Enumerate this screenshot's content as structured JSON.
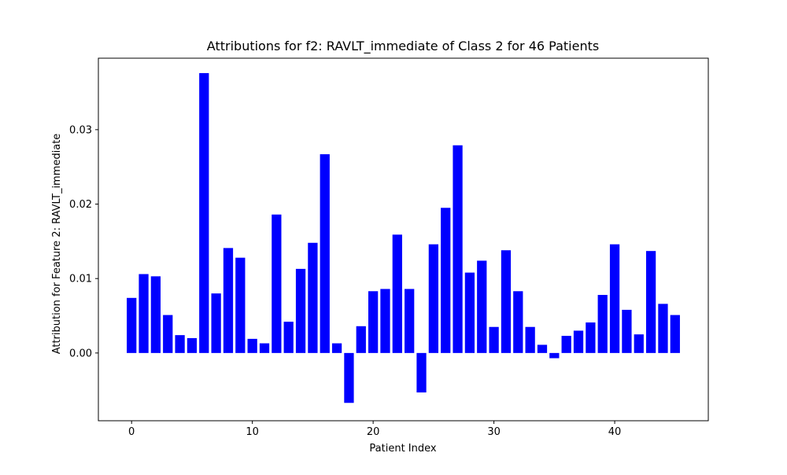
{
  "chart_data": {
    "type": "bar",
    "title": "Attributions for f2: RAVLT_immediate of Class 2 for 46 Patients",
    "xlabel": "Patient Index",
    "ylabel": "Attribution for Feature 2: RAVLT_immediate",
    "x": [
      0,
      1,
      2,
      3,
      4,
      5,
      6,
      7,
      8,
      9,
      10,
      11,
      12,
      13,
      14,
      15,
      16,
      17,
      18,
      19,
      20,
      21,
      22,
      23,
      24,
      25,
      26,
      27,
      28,
      29,
      30,
      31,
      32,
      33,
      34,
      35,
      36,
      37,
      38,
      39,
      40,
      41,
      42,
      43,
      44,
      45
    ],
    "values": [
      0.0074,
      0.0106,
      0.0103,
      0.0051,
      0.0024,
      0.002,
      0.0376,
      0.008,
      0.0141,
      0.0128,
      0.0019,
      0.0013,
      0.0186,
      0.0042,
      0.0113,
      0.0148,
      0.0267,
      0.0013,
      -0.0067,
      0.0036,
      0.0083,
      0.0086,
      0.0159,
      0.0086,
      -0.0053,
      0.0146,
      0.0195,
      0.0279,
      0.0108,
      0.0124,
      0.0035,
      0.0138,
      0.0083,
      0.0035,
      0.0011,
      -0.0007,
      0.0023,
      0.003,
      0.0041,
      0.0078,
      0.0146,
      0.0058,
      0.0025,
      0.0137,
      0.0066,
      0.0051
    ],
    "xlim": [
      -2.75,
      47.75
    ],
    "ylim": [
      -0.0091,
      0.0396
    ],
    "xticks": [
      0,
      10,
      20,
      30,
      40
    ],
    "xtick_labels": [
      "0",
      "10",
      "20",
      "30",
      "40"
    ],
    "yticks": [
      0.0,
      0.01,
      0.02,
      0.03
    ],
    "ytick_labels": [
      "0.00",
      "0.01",
      "0.02",
      "0.03"
    ],
    "bar_color": "#0000ff",
    "grid": false,
    "legend": "none"
  }
}
